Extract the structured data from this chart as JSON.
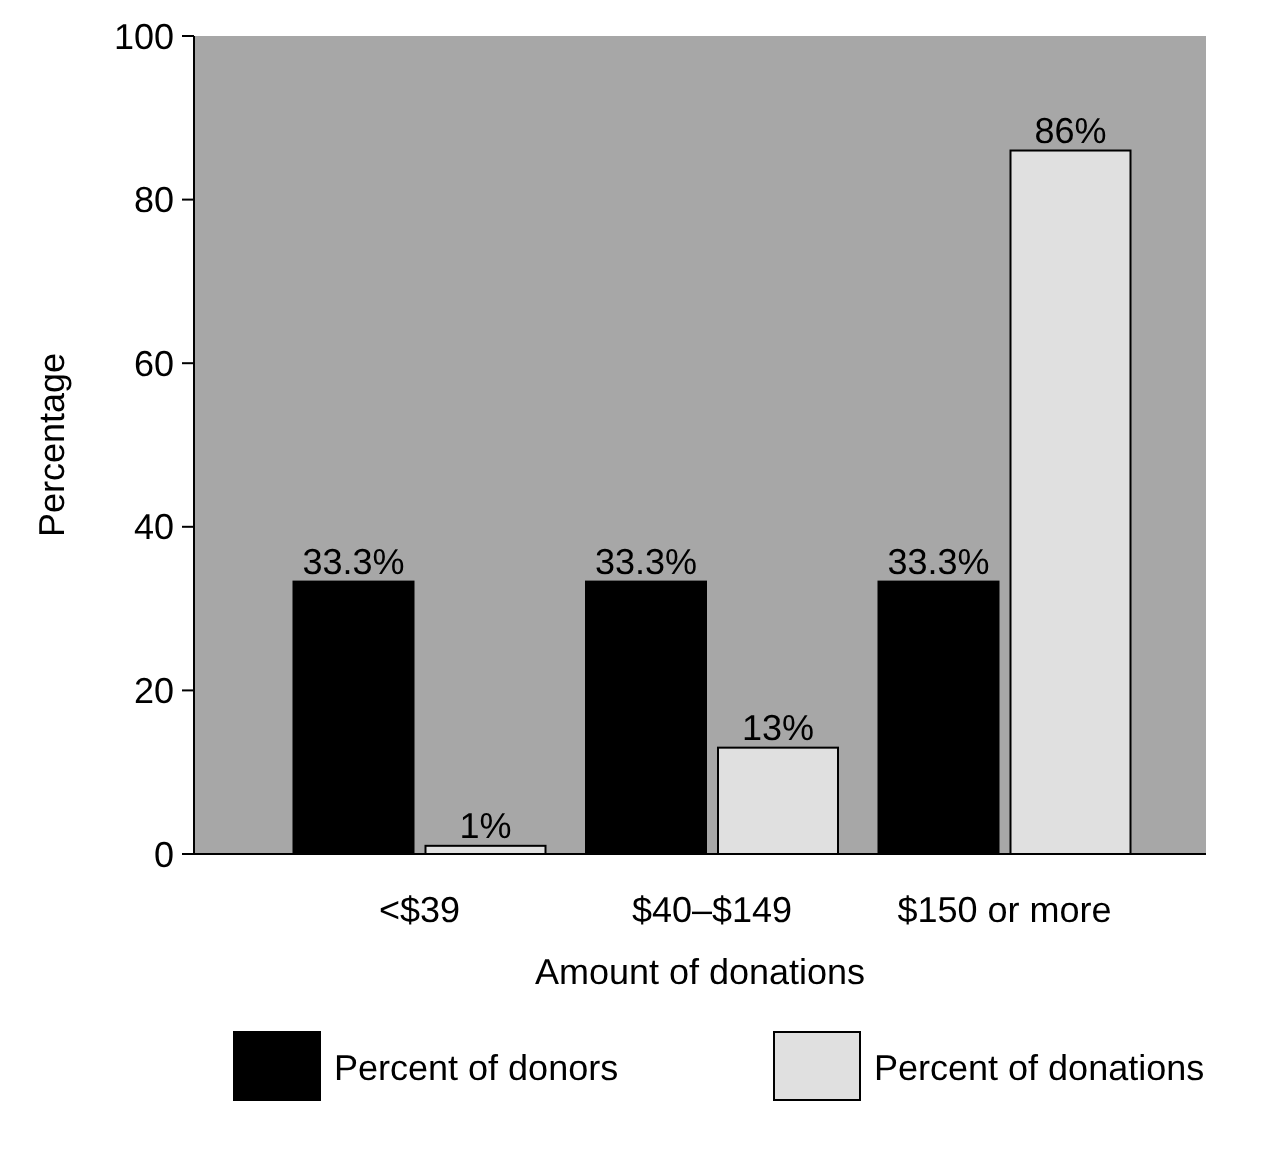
{
  "chart_data": {
    "type": "bar",
    "xlabel": "Amount of donations",
    "ylabel": "Percentage",
    "categories": [
      "<$39",
      "$40–$149",
      "$150 or more"
    ],
    "series": [
      {
        "name": "Percent of donors",
        "color": "#000000",
        "values": [
          33.3,
          33.3,
          33.3
        ],
        "value_labels": [
          "33.3%",
          "33.3%",
          "33.3%"
        ]
      },
      {
        "name": "Percent of donations",
        "color": "#e0e0e0",
        "values": [
          1,
          13,
          86
        ],
        "value_labels": [
          "1%",
          "13%",
          "86%"
        ]
      }
    ],
    "ylim": [
      0,
      100
    ],
    "yticks": [
      0,
      20,
      40,
      60,
      80,
      100
    ],
    "grid": false,
    "legend": "bottom"
  }
}
